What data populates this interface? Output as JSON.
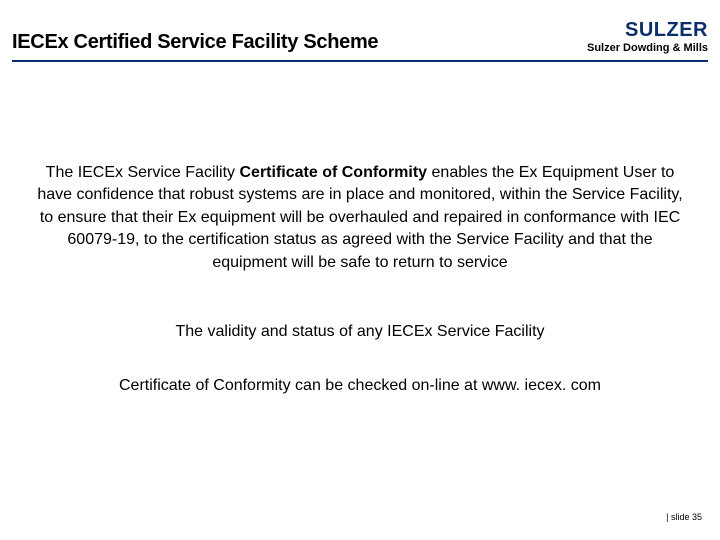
{
  "header": {
    "title": "IECEx Certified Service Facility Scheme",
    "logo": "SULZER",
    "subtitle": "Sulzer Dowding & Mills"
  },
  "body": {
    "p1_pre": "The IECEx Service Facility ",
    "p1_bold": "Certificate of Conformity",
    "p1_post": " enables the Ex Equipment User to have confidence that robust systems are in place and monitored, within the Service Facility, to ensure that their Ex equipment will be overhauled and repaired in conformance with IEC 60079-19, to the certification status as agreed with the Service Facility and that the equipment will be safe to return to service",
    "p2_line1": "The validity and status of any IECEx Service Facility",
    "p2_line2": "Certificate of Conformity can be checked on-line at www. iecex. com"
  },
  "footer": {
    "label": "| slide 35"
  },
  "colors": {
    "brand": "#0b2f6b",
    "text": "#000000",
    "background": "#ffffff"
  },
  "typography": {
    "title_fontsize": 20,
    "body_fontsize": 16,
    "footer_fontsize": 9,
    "logo_fontsize": 20,
    "subtitle_fontsize": 11
  }
}
